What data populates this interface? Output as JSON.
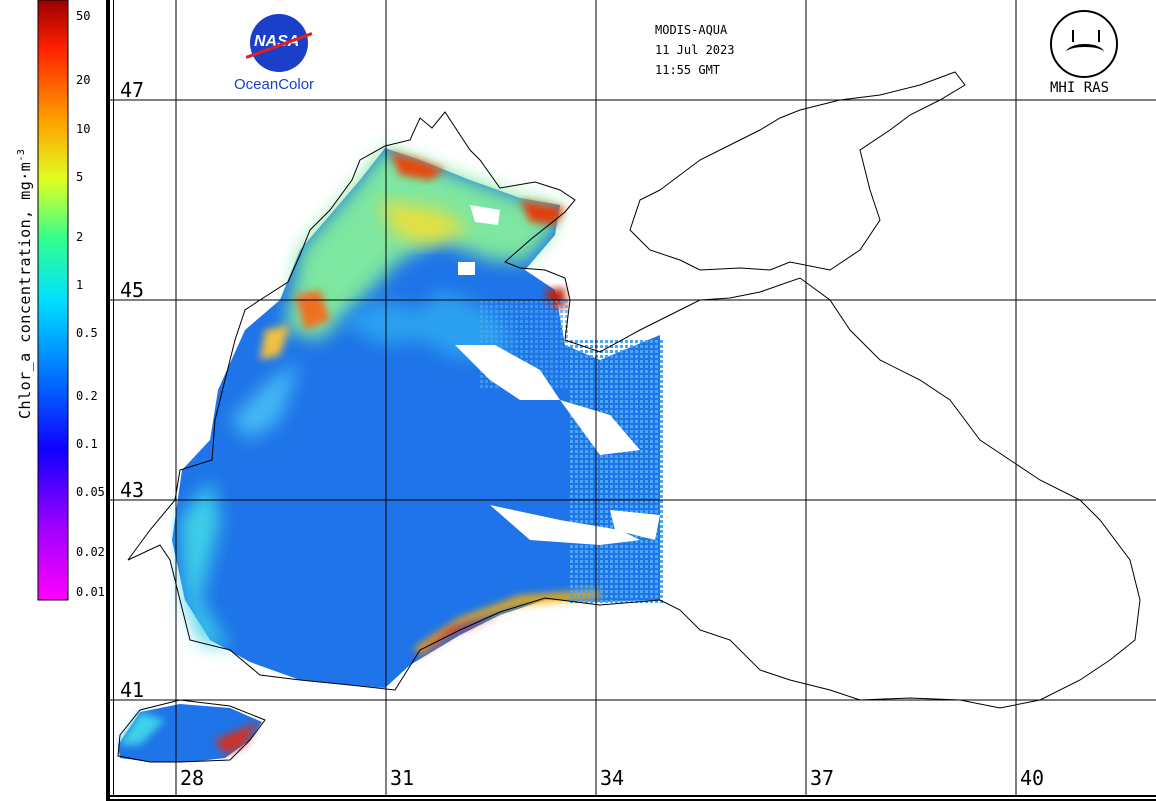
{
  "header": {
    "sensor": "MODIS-AQUA",
    "date": "11 Jul 2023",
    "time": "11:55 GMT"
  },
  "logos": {
    "nasa_text": "NASA",
    "oceancolor_text": "OceanColor",
    "mhi_text": "MHI RAS"
  },
  "colorbar": {
    "title": "Chlor_a concentration, mg·m",
    "title_exponent": "-3",
    "ticks": [
      "50",
      "20",
      "10",
      "5",
      "2",
      "1",
      "0.5",
      "0.2",
      "0.1",
      "0.05",
      "0.02",
      "0.01"
    ],
    "values": [
      50,
      20,
      10,
      5,
      2,
      1,
      0.5,
      0.2,
      0.1,
      0.05,
      0.02,
      0.01
    ],
    "scale": "log",
    "range": [
      0.01,
      60
    ],
    "colors": [
      "#ff00ff",
      "#9a00ff",
      "#0000ff",
      "#0080ff",
      "#00ffff",
      "#00ff80",
      "#ffff00",
      "#ff8000",
      "#ff0000",
      "#900000"
    ]
  },
  "axes": {
    "latitudes": [
      "47",
      "45",
      "43",
      "41"
    ],
    "longitudes": [
      "28",
      "31",
      "34",
      "37",
      "40"
    ]
  },
  "colors": {
    "grid": "#000000",
    "land": "#ffffff",
    "coast": "#000000"
  }
}
